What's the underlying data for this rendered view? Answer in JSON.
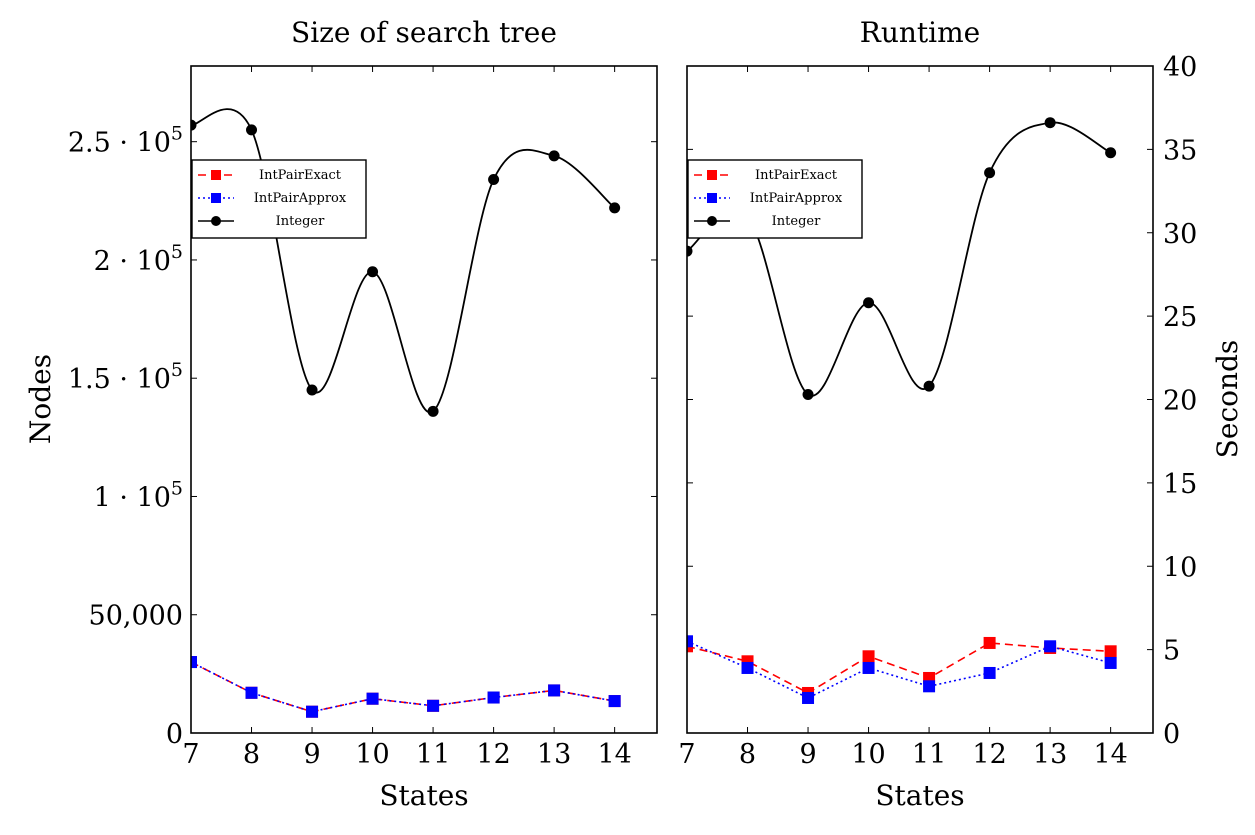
{
  "chart_data": [
    {
      "type": "line",
      "title": "Size of search tree",
      "xlabel": "States",
      "ylabel": "Nodes",
      "x": [
        7,
        8,
        9,
        10,
        11,
        12,
        13,
        14
      ],
      "xlim": [
        7,
        14.7
      ],
      "ylim": [
        0,
        282000
      ],
      "yaxis_side": "left",
      "yticks": [
        {
          "value": 0,
          "label": "0"
        },
        {
          "value": 50000,
          "label": "50,000"
        },
        {
          "value": 100000,
          "mant": "1",
          "exp": "5"
        },
        {
          "value": 150000,
          "mant": "1.5",
          "exp": "5"
        },
        {
          "value": 200000,
          "mant": "2",
          "exp": "5"
        },
        {
          "value": 250000,
          "mant": "2.5",
          "exp": "5"
        }
      ],
      "legend": {
        "placement": "upper-left"
      },
      "series": [
        {
          "name": "IntPairExact",
          "color": "#ff0000",
          "style": "dashed",
          "marker": "square",
          "smooth": false,
          "values": [
            30000,
            17000,
            9000,
            14500,
            11500,
            15000,
            18000,
            13500
          ]
        },
        {
          "name": "IntPairApprox",
          "color": "#0000ff",
          "style": "dotted",
          "marker": "square",
          "smooth": false,
          "values": [
            30000,
            17000,
            9000,
            14500,
            11500,
            15000,
            18000,
            13500
          ]
        },
        {
          "name": "Integer",
          "color": "#000000",
          "style": "solid",
          "marker": "circle",
          "smooth": true,
          "values": [
            257000,
            255000,
            145000,
            195000,
            136000,
            234000,
            244000,
            222000
          ]
        }
      ]
    },
    {
      "type": "line",
      "title": "Runtime",
      "xlabel": "States",
      "ylabel": "Seconds",
      "x": [
        7,
        8,
        9,
        10,
        11,
        12,
        13,
        14
      ],
      "xlim": [
        7,
        14.7
      ],
      "ylim": [
        0,
        40
      ],
      "yaxis_side": "right",
      "yticks": [
        {
          "value": 0,
          "label": "0"
        },
        {
          "value": 5,
          "label": "5"
        },
        {
          "value": 10,
          "label": "10"
        },
        {
          "value": 15,
          "label": "15"
        },
        {
          "value": 20,
          "label": "20"
        },
        {
          "value": 25,
          "label": "25"
        },
        {
          "value": 30,
          "label": "30"
        },
        {
          "value": 35,
          "label": "35"
        },
        {
          "value": 40,
          "label": "40"
        }
      ],
      "legend": {
        "placement": "upper-left"
      },
      "series": [
        {
          "name": "IntPairExact",
          "color": "#ff0000",
          "style": "dashed",
          "marker": "square",
          "smooth": false,
          "values": [
            5.2,
            4.3,
            2.4,
            4.6,
            3.3,
            5.4,
            5.1,
            4.9
          ]
        },
        {
          "name": "IntPairApprox",
          "color": "#0000ff",
          "style": "dotted",
          "marker": "square",
          "smooth": false,
          "values": [
            5.5,
            3.9,
            2.1,
            3.9,
            2.8,
            3.6,
            5.2,
            4.2
          ]
        },
        {
          "name": "Integer",
          "color": "#000000",
          "style": "solid",
          "marker": "circle",
          "smooth": true,
          "values": [
            28.9,
            31.0,
            20.3,
            25.8,
            20.8,
            33.6,
            36.6,
            34.8
          ]
        }
      ]
    }
  ]
}
